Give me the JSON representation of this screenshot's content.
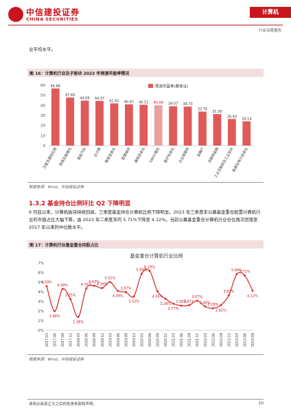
{
  "header": {
    "logo_cn": "中信建投证券",
    "logo_en": "CHINA SECURITIES",
    "sector": "计算机",
    "report_type": "行业深度报告"
  },
  "intro_text": "业平均水平。",
  "fig16": {
    "title": "图 16：计算机行业及子板块 2023 年预测市盈率情况",
    "source": "数据来源：Wind，中信建投证券",
    "chart_data": {
      "type": "bar",
      "series": [
        {
          "name": "预测市盈率(整体法)",
          "color": "#e05a5a"
        }
      ],
      "categories": [
        "卫星及通信应用",
        "网络及数据化",
        "智能汽车",
        "云计算",
        "教育信息化",
        "智慧城市",
        "建筑信息化",
        "SWI计算机",
        "医疗信息化",
        "企业级服务",
        "金融IT",
        "互联网金融",
        "工业互联网及工业软件",
        "能源及电力信息化"
      ],
      "values": [
        56.68,
        47.69,
        44.69,
        44.37,
        41.91,
        40.97,
        40.51,
        40.09,
        39.07,
        38.73,
        33.76,
        31.3,
        26.4,
        24.14
      ],
      "value_labels": [
        "56.68",
        "47.69",
        "44.69",
        "44.37",
        "41.91",
        "40.97",
        "40.51",
        "40.09",
        "39.07",
        "38.73",
        "33.76",
        "31.30",
        "26.40",
        "24.14"
      ],
      "highlight_index": 7,
      "highlight_color": "#e8a0a0",
      "ylim": [
        0,
        60
      ],
      "yticks": [
        "0",
        "10",
        "20",
        "30",
        "40",
        "50",
        "60"
      ],
      "legend_position": "top-right"
    }
  },
  "section": {
    "number_title": "1.3.2 基金持仓比例环比 Q2 下降明显",
    "paragraph": "6 月底以来，计算机板块持续回调，三季度基金持仓计算机比例下降明显。2023 年三季度末公募基金重仓配置计算机行业的市值占比大幅下降，由 2023 年二季度末的 5.71%下降至 4.12%。当前公募基金重仓计算机行业仓位再次回落至 2017 年以来的中位数水平。"
  },
  "fig17": {
    "title": "图 17：计算机行业基金重仓持股占比",
    "source": "数据来源：Wind，中信建投证券",
    "chart_data": {
      "type": "line",
      "title": "基金重仓计算机行业比例",
      "color": "#d83030",
      "x": [
        "2017-03",
        "2017-06",
        "2017-09",
        "2017-12",
        "2018-03",
        "2018-06",
        "2018-09",
        "2018-12",
        "2019-03",
        "2019-06",
        "2019-09",
        "2019-12",
        "2020-03",
        "2020-06",
        "2020-09",
        "2020-12",
        "2021-03",
        "2021-06",
        "2021-09",
        "2021-12",
        "2022-03",
        "2022-06",
        "2022-09",
        "2022-12",
        "2023-03",
        "2023-06",
        "2023-09"
      ],
      "y": [
        4.59,
        1.99,
        4.29,
        3.25,
        1.38,
        4.35,
        4.63,
        4.39,
        5.02,
        4.09,
        3.97,
        3.52,
        5.89,
        6.19,
        4.05,
        3.28,
        2.77,
        2.56,
        2.61,
        3.07,
        2.48,
        2.29,
        2.62,
        3.63,
        5.84,
        5.71,
        4.12
      ],
      "labels": [
        "4.59%",
        "1.99%",
        "4.29%",
        "3.25%",
        "1.38%",
        "4.35%",
        "4.63%",
        "4.39%",
        "5.02%",
        "4.09%",
        "3.97%",
        "3.52%",
        "5.89%",
        "6.19%",
        "4.05%",
        "3.28%",
        "2.77%",
        "2.56%",
        "2.61%",
        "3.07%",
        "2.48%",
        "2.29%",
        "2.62%",
        "3.63%",
        "5.84%",
        "5.71%",
        "4.12%"
      ],
      "ylim": [
        0,
        7
      ],
      "yticks": [
        "0%",
        "1%",
        "2%",
        "3%",
        "4%",
        "5%",
        "6%",
        "7%"
      ],
      "grid": false
    }
  },
  "footer": {
    "disclaimer": "请务必阅读正文之后的免责条款和声明。",
    "page": "10"
  }
}
